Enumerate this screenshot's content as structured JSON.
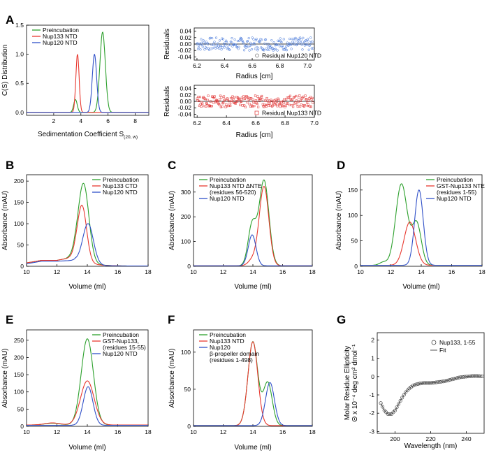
{
  "chart_data": [
    {
      "panel": "A",
      "type": "line",
      "xlabel": "Sedimentation Coefficient S",
      "xlabel_sub": "(20, w)",
      "ylabel": "C(S) Distribution",
      "xlim": [
        0,
        9
      ],
      "ylim": [
        -0.05,
        1.5
      ],
      "xticks": [
        2,
        4,
        6,
        8
      ],
      "yticks": [
        0.0,
        0.5,
        1.0,
        1.5
      ],
      "yticklabels": [
        "0.0",
        "0.5",
        "1.0",
        "1.5"
      ],
      "legend_position": "top-left",
      "series": [
        {
          "name": "Preincubation",
          "color": "#2ca02c",
          "peaks": [
            [
              3.6,
              0.22,
              0.13
            ],
            [
              5.6,
              1.38,
              0.2
            ]
          ]
        },
        {
          "name": "Nup133 NTD",
          "color": "#e8382f",
          "peaks": [
            [
              3.75,
              1.0,
              0.12
            ]
          ]
        },
        {
          "name": "Nup120 NTD",
          "color": "#3050c8",
          "peaks": [
            [
              5.0,
              1.0,
              0.16
            ]
          ]
        }
      ]
    },
    {
      "panel": "A-residual-top",
      "type": "scatter",
      "xlabel": "Radius [cm]",
      "ylabel": "Residuals",
      "xlim": [
        6.18,
        7.05
      ],
      "ylim": [
        -0.05,
        0.05
      ],
      "xticks": [
        6.2,
        6.4,
        6.6,
        6.8,
        7.0
      ],
      "xticklabels": [
        "6.2",
        "6.4",
        "6.6",
        "6.8",
        "7.0"
      ],
      "yticks": [
        0.04,
        0.02,
        0.0,
        -0.02,
        -0.04
      ],
      "yticklabels": [
        "0.04",
        "0.02",
        "0.00",
        "-0.02",
        "-0.04"
      ],
      "legend_position": "bottom-right",
      "series": [
        {
          "name": "Residual Nup120 NTD",
          "color": "#3a6fd8",
          "marker": "circle",
          "seed": 7,
          "amplitude": 0.02,
          "n": 200
        }
      ]
    },
    {
      "panel": "A-residual-bottom",
      "type": "scatter",
      "xlabel": "Radius [cm]",
      "ylabel": "Residuals",
      "xlim": [
        6.18,
        7.0
      ],
      "ylim": [
        -0.05,
        0.05
      ],
      "xticks": [
        6.2,
        6.4,
        6.6,
        6.8,
        7.0
      ],
      "xticklabels": [
        "6.2",
        "6.4",
        "6.6",
        "6.8",
        "7.0"
      ],
      "yticks": [
        0.04,
        0.02,
        0.0,
        -0.02,
        -0.04
      ],
      "yticklabels": [
        "0.04",
        "0.02",
        "0.00",
        "-0.02",
        "-0.04"
      ],
      "legend_position": "bottom-right",
      "series": [
        {
          "name": "Residual Nup133 NTD",
          "color": "#e03030",
          "marker": "square",
          "seed": 13,
          "amplitude": 0.018,
          "n": 200
        }
      ]
    },
    {
      "panel": "B",
      "type": "line",
      "xlabel": "Volume (ml)",
      "ylabel": "Absorbance (mAU)",
      "xlim": [
        10,
        18
      ],
      "ylim": [
        0,
        215
      ],
      "xticks": [
        10,
        12,
        14,
        16,
        18
      ],
      "yticks": [
        0,
        50,
        100,
        150,
        200
      ],
      "legend_position": "top-right",
      "series": [
        {
          "name": "Preincubation",
          "color": "#2ca02c",
          "baseline": 3,
          "ramp": [
            [
              10,
              8
            ],
            [
              11,
              14
            ],
            [
              12,
              14
            ],
            [
              12.6,
              18
            ],
            [
              13.2,
              25
            ]
          ],
          "peaks": [
            [
              13.75,
              182,
              0.35
            ]
          ]
        },
        {
          "name": "Nup133 CTD",
          "color": "#e8382f",
          "baseline": 3,
          "ramp": [
            [
              10,
              8
            ],
            [
              11,
              14
            ],
            [
              12,
              14
            ],
            [
              12.6,
              18
            ],
            [
              13.2,
              23
            ]
          ],
          "peaks": [
            [
              13.65,
              130,
              0.3
            ]
          ]
        },
        {
          "name": "Nup120 NTD",
          "color": "#3050c8",
          "baseline": 3,
          "ramp": [
            [
              10,
              6
            ],
            [
              11,
              12
            ],
            [
              12,
              12
            ],
            [
              12.6,
              13
            ],
            [
              13.2,
              14
            ]
          ],
          "peaks": [
            [
              14.05,
              95,
              0.35
            ]
          ]
        }
      ]
    },
    {
      "panel": "C",
      "type": "line",
      "xlabel": "Volume (ml)",
      "ylabel": "Absorbance (mAU)",
      "xlim": [
        10,
        18
      ],
      "ylim": [
        0,
        370
      ],
      "xticks": [
        10,
        12,
        14,
        16,
        18
      ],
      "yticks": [
        0,
        100,
        200,
        300
      ],
      "legend_position": "top-left",
      "series": [
        {
          "name": "Preincubation",
          "color": "#2ca02c",
          "baseline": 2,
          "peaks": [
            [
              13.95,
              165,
              0.27
            ],
            [
              14.75,
              345,
              0.33
            ]
          ]
        },
        {
          "name": "Nup133 NTD ΔNTE",
          "name2": "(residues 56-520)",
          "color": "#e8382f",
          "baseline": 2,
          "peaks": [
            [
              14.75,
              320,
              0.32
            ],
            [
              14.0,
              25,
              0.3
            ]
          ]
        },
        {
          "name": "Nup120 NTD",
          "color": "#3050c8",
          "baseline": 2,
          "peaks": [
            [
              13.95,
              125,
              0.26
            ]
          ]
        }
      ]
    },
    {
      "panel": "D",
      "type": "line",
      "xlabel": "Volume (ml)",
      "ylabel": "Absorbance (mAU)",
      "xlim": [
        10,
        18
      ],
      "ylim": [
        0,
        180
      ],
      "xticks": [
        10,
        12,
        14,
        16,
        18
      ],
      "yticks": [
        0,
        50,
        100,
        150
      ],
      "legend_position": "top-right",
      "series": [
        {
          "name": "Preincubation",
          "color": "#2ca02c",
          "baseline": 2,
          "peaks": [
            [
              11.5,
              6,
              0.25
            ],
            [
              12.7,
              160,
              0.38
            ],
            [
              13.7,
              82,
              0.3
            ]
          ]
        },
        {
          "name": "GST-Nup133 NTE",
          "name2": "(residues 1-55)",
          "color": "#e8382f",
          "baseline": 2,
          "peaks": [
            [
              13.25,
              85,
              0.38
            ]
          ]
        },
        {
          "name": "Nup120 NTD",
          "color": "#3050c8",
          "baseline": 2,
          "peaks": [
            [
              13.85,
              148,
              0.28
            ]
          ]
        }
      ]
    },
    {
      "panel": "E",
      "type": "line",
      "xlabel": "Volume (ml)",
      "ylabel": "Absorbance (mAU)",
      "xlim": [
        10,
        18
      ],
      "ylim": [
        0,
        280
      ],
      "xticks": [
        10,
        12,
        14,
        16,
        18
      ],
      "yticks": [
        0,
        50,
        100,
        150,
        200,
        250
      ],
      "legend_position": "top-right",
      "series": [
        {
          "name": "Preincubation",
          "color": "#2ca02c",
          "baseline": 4,
          "peaks": [
            [
              11.7,
              5,
              0.5
            ],
            [
              14.0,
              250,
              0.4
            ]
          ]
        },
        {
          "name": "GST-Nup133,",
          "name2": "(residues 15-55)",
          "color": "#e8382f",
          "baseline": 4,
          "peaks": [
            [
              11.7,
              6,
              0.5
            ],
            [
              14.0,
              128,
              0.45
            ]
          ]
        },
        {
          "name": "Nup120 NTD",
          "color": "#3050c8",
          "baseline": 3,
          "peaks": [
            [
              14.05,
              112,
              0.32
            ]
          ]
        }
      ]
    },
    {
      "panel": "F",
      "type": "line",
      "xlabel": "Volume (ml)",
      "ylabel": "Absorbance (mAU)",
      "xlim": [
        10,
        18
      ],
      "ylim": [
        0,
        130
      ],
      "xticks": [
        10,
        12,
        14,
        16,
        18
      ],
      "yticks": [
        0,
        50,
        100
      ],
      "legend_position": "top-left",
      "series": [
        {
          "name": "Preincubation",
          "color": "#2ca02c",
          "baseline": 1,
          "peaks": [
            [
              14.0,
              113,
              0.33
            ],
            [
              15.0,
              58,
              0.3
            ]
          ]
        },
        {
          "name": "Nup133 NTD",
          "color": "#e8382f",
          "baseline": 1,
          "peaks": [
            [
              14.0,
              113,
              0.33
            ]
          ]
        },
        {
          "name": "Nup120",
          "name2": "β-propeller domain",
          "name3": "(residues 1-498)",
          "color": "#3050c8",
          "baseline": 1,
          "peaks": [
            [
              15.15,
              58,
              0.3
            ]
          ]
        }
      ]
    },
    {
      "panel": "G",
      "type": "scatter",
      "xlabel": "Wavelength (nm)",
      "ylabel": "Molar Residue Ellipticity",
      "ylabel2": "Θ x 10⁻⁴ deg cm² dmol⁻¹",
      "xlim": [
        190,
        250
      ],
      "ylim": [
        -3.1,
        2.4
      ],
      "xticks": [
        200,
        220,
        240
      ],
      "yticks": [
        2,
        1,
        0,
        -1,
        -2,
        -3
      ],
      "yticklabels": [
        "2",
        "1",
        "0",
        "-1",
        "-2",
        "-3"
      ],
      "legend_position": "top-right",
      "series": [
        {
          "name": "Nup133, 1-55",
          "marker": "open-circle",
          "color": "#333333",
          "x": [
            192,
            194,
            196,
            198,
            200,
            202,
            204,
            206,
            208,
            210,
            212,
            214,
            216,
            218,
            220,
            222,
            224,
            226,
            228,
            230,
            232,
            234,
            236,
            238,
            240,
            242,
            244,
            246,
            248
          ],
          "y": [
            -1.45,
            -1.85,
            -2.05,
            -2.05,
            -1.85,
            -1.5,
            -1.15,
            -0.85,
            -0.65,
            -0.5,
            -0.42,
            -0.38,
            -0.35,
            -0.35,
            -0.35,
            -0.33,
            -0.3,
            -0.28,
            -0.25,
            -0.2,
            -0.15,
            -0.1,
            -0.05,
            -0.02,
            0.0,
            0.02,
            0.03,
            0.03,
            0.02
          ]
        },
        {
          "name": "Fit",
          "color": "#555555"
        }
      ]
    }
  ]
}
